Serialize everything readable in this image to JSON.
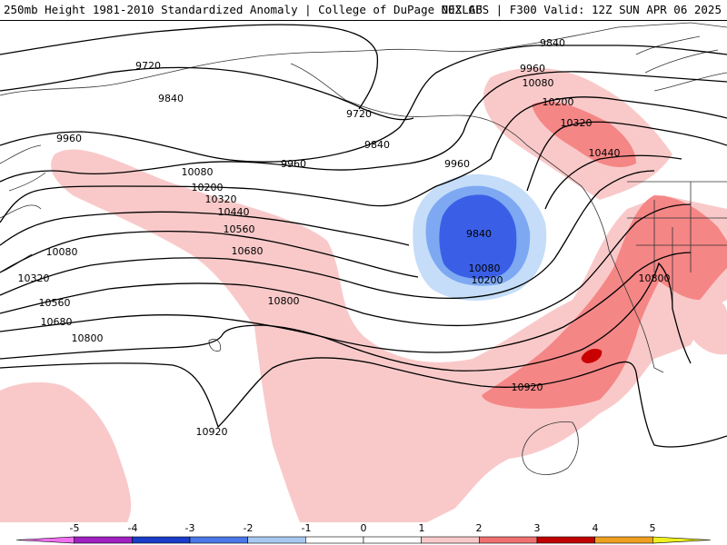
{
  "header": {
    "left": "250mb Height 1981-2010 Standardized Anomaly | College of DuPage NEXLAB",
    "right": "00Z GFS | F300 Valid: 12Z SUN APR 06 2025"
  },
  "colors": {
    "anom_neg3": "#3a5fe6",
    "anom_neg2": "#7ea9f2",
    "anom_neg1": "#c5ddf8",
    "anom_pos1": "#f9c9c9",
    "anom_pos2": "#f58686",
    "anom_pos3": "#d60a0a",
    "contour": "#000000",
    "coast": "#333333"
  },
  "contour_labels": [
    {
      "text": "9720"
    },
    {
      "text": "9720"
    },
    {
      "text": "9840"
    },
    {
      "text": "9840"
    },
    {
      "text": "9840"
    },
    {
      "text": "9840"
    },
    {
      "text": "9960"
    },
    {
      "text": "9960"
    },
    {
      "text": "9960"
    },
    {
      "text": "9960"
    },
    {
      "text": "10080"
    },
    {
      "text": "10080"
    },
    {
      "text": "10080"
    },
    {
      "text": "10080"
    },
    {
      "text": "10200"
    },
    {
      "text": "10200"
    },
    {
      "text": "10200"
    },
    {
      "text": "10320"
    },
    {
      "text": "10320"
    },
    {
      "text": "10320"
    },
    {
      "text": "10440"
    },
    {
      "text": "10440"
    },
    {
      "text": "10560"
    },
    {
      "text": "10560"
    },
    {
      "text": "10680"
    },
    {
      "text": "10680"
    },
    {
      "text": "10800"
    },
    {
      "text": "10800"
    },
    {
      "text": "10800"
    },
    {
      "text": "10920"
    },
    {
      "text": "10920"
    }
  ],
  "legend": {
    "ticks": [
      "-5",
      "-4",
      "-3",
      "-2",
      "-1",
      "0",
      "1",
      "2",
      "3",
      "4",
      "5"
    ],
    "colors": [
      "#f070f0",
      "#a020c0",
      "#1a3cc8",
      "#4a78e8",
      "#a8c8f0",
      "#ffffff",
      "#ffffff",
      "#f9c9c9",
      "#f07070",
      "#c00000",
      "#f0a020",
      "#f0f020"
    ]
  }
}
